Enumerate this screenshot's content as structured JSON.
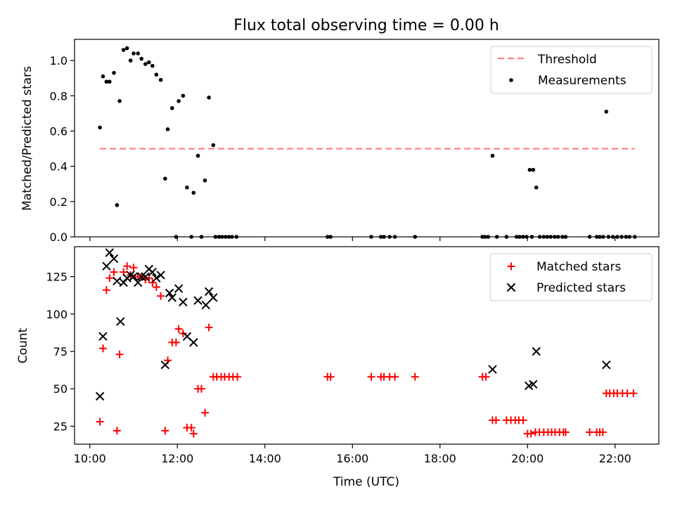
{
  "chart_data": {
    "title": "Flux total observing time = 0.00 h",
    "xlabel": "Time (UTC)",
    "x_ticks": [
      "10:00",
      "12:00",
      "14:00",
      "16:00",
      "18:00",
      "20:00",
      "22:00"
    ],
    "x_tick_hours": [
      10,
      12,
      14,
      16,
      18,
      20,
      22
    ],
    "xlim_hours": [
      9.65,
      23.0
    ],
    "panels": [
      {
        "type": "scatter",
        "ylabel": "Matched/Predicted stars",
        "ylim": [
          0,
          1.12
        ],
        "y_ticks": [
          0.0,
          0.2,
          0.4,
          0.6,
          0.8,
          1.0
        ],
        "y_tick_labels": [
          "0.0",
          "0.2",
          "0.4",
          "0.6",
          "0.8",
          "1.0"
        ],
        "legend_position": "top-right",
        "threshold": {
          "name": "Threshold",
          "color": "#ff7f7f",
          "y": 0.5,
          "x_range": [
            10.23,
            22.45
          ]
        },
        "series": [
          {
            "name": "Measurements",
            "color": "#000000",
            "marker": "dot",
            "points": [
              [
                10.23,
                0.62
              ],
              [
                10.3,
                0.91
              ],
              [
                10.38,
                0.88
              ],
              [
                10.45,
                0.88
              ],
              [
                10.55,
                0.93
              ],
              [
                10.62,
                0.18
              ],
              [
                10.68,
                0.77
              ],
              [
                10.77,
                1.06
              ],
              [
                10.85,
                1.07
              ],
              [
                10.93,
                1.0
              ],
              [
                11.0,
                1.04
              ],
              [
                11.1,
                1.04
              ],
              [
                11.18,
                1.01
              ],
              [
                11.27,
                0.98
              ],
              [
                11.35,
                0.99
              ],
              [
                11.43,
                0.97
              ],
              [
                11.52,
                0.92
              ],
              [
                11.62,
                0.89
              ],
              [
                11.72,
                0.33
              ],
              [
                11.78,
                0.61
              ],
              [
                11.88,
                0.73
              ],
              [
                11.97,
                0.0
              ],
              [
                12.03,
                0.77
              ],
              [
                12.13,
                0.8
              ],
              [
                12.22,
                0.28
              ],
              [
                12.32,
                0.0
              ],
              [
                12.37,
                0.25
              ],
              [
                12.47,
                0.46
              ],
              [
                12.55,
                0.0
              ],
              [
                12.63,
                0.32
              ],
              [
                12.72,
                0.79
              ],
              [
                12.82,
                0.52
              ],
              [
                12.87,
                0.0
              ],
              [
                12.95,
                0.0
              ],
              [
                13.02,
                0.0
              ],
              [
                13.1,
                0.0
              ],
              [
                13.18,
                0.0
              ],
              [
                13.25,
                0.0
              ],
              [
                13.35,
                0.0
              ],
              [
                15.43,
                0.0
              ],
              [
                15.5,
                0.0
              ],
              [
                16.43,
                0.0
              ],
              [
                16.65,
                0.0
              ],
              [
                16.72,
                0.0
              ],
              [
                16.85,
                0.0
              ],
              [
                16.97,
                0.0
              ],
              [
                17.43,
                0.0
              ],
              [
                18.97,
                0.0
              ],
              [
                19.03,
                0.0
              ],
              [
                19.1,
                0.0
              ],
              [
                19.2,
                0.46
              ],
              [
                19.3,
                0.0
              ],
              [
                19.52,
                0.0
              ],
              [
                19.75,
                0.0
              ],
              [
                19.82,
                0.0
              ],
              [
                19.9,
                0.0
              ],
              [
                19.98,
                0.0
              ],
              [
                20.05,
                0.38
              ],
              [
                20.1,
                0.0
              ],
              [
                20.13,
                0.38
              ],
              [
                20.2,
                0.28
              ],
              [
                20.28,
                0.0
              ],
              [
                20.37,
                0.0
              ],
              [
                20.45,
                0.0
              ],
              [
                20.53,
                0.0
              ],
              [
                20.62,
                0.0
              ],
              [
                20.7,
                0.0
              ],
              [
                20.8,
                0.0
              ],
              [
                20.87,
                0.0
              ],
              [
                21.42,
                0.0
              ],
              [
                21.58,
                0.0
              ],
              [
                21.65,
                0.0
              ],
              [
                21.73,
                0.0
              ],
              [
                21.8,
                0.71
              ],
              [
                21.85,
                0.0
              ],
              [
                21.95,
                0.0
              ],
              [
                22.05,
                0.0
              ],
              [
                22.15,
                0.0
              ],
              [
                22.25,
                0.0
              ],
              [
                22.33,
                0.0
              ],
              [
                22.45,
                0.0
              ]
            ]
          }
        ]
      },
      {
        "type": "scatter",
        "ylabel": "Count",
        "ylim": [
          13,
          145
        ],
        "y_ticks": [
          25,
          50,
          75,
          100,
          125
        ],
        "y_tick_labels": [
          "25",
          "50",
          "75",
          "100",
          "125"
        ],
        "legend_position": "top-right",
        "series": [
          {
            "name": "Matched stars",
            "color": "#ff0000",
            "marker": "plus",
            "points": [
              [
                10.23,
                28
              ],
              [
                10.3,
                77
              ],
              [
                10.38,
                116
              ],
              [
                10.45,
                124
              ],
              [
                10.55,
                128
              ],
              [
                10.62,
                22
              ],
              [
                10.68,
                73
              ],
              [
                10.77,
                128
              ],
              [
                10.85,
                132
              ],
              [
                10.93,
                126
              ],
              [
                11.0,
                131
              ],
              [
                11.1,
                125
              ],
              [
                11.18,
                125
              ],
              [
                11.27,
                123
              ],
              [
                11.35,
                124
              ],
              [
                11.43,
                121
              ],
              [
                11.52,
                118
              ],
              [
                11.62,
                112
              ],
              [
                11.72,
                22
              ],
              [
                11.78,
                69
              ],
              [
                11.88,
                81
              ],
              [
                11.97,
                81
              ],
              [
                12.03,
                90
              ],
              [
                12.13,
                87
              ],
              [
                12.22,
                24
              ],
              [
                12.32,
                24
              ],
              [
                12.37,
                20
              ],
              [
                12.47,
                50
              ],
              [
                12.55,
                50
              ],
              [
                12.63,
                34
              ],
              [
                12.72,
                91
              ],
              [
                12.82,
                58
              ],
              [
                12.9,
                58
              ],
              [
                13.0,
                58
              ],
              [
                13.08,
                58
              ],
              [
                13.18,
                58
              ],
              [
                13.27,
                58
              ],
              [
                13.37,
                58
              ],
              [
                15.43,
                58
              ],
              [
                15.5,
                58
              ],
              [
                16.43,
                58
              ],
              [
                16.65,
                58
              ],
              [
                16.72,
                58
              ],
              [
                16.85,
                58
              ],
              [
                16.97,
                58
              ],
              [
                17.43,
                58
              ],
              [
                18.97,
                58
              ],
              [
                19.05,
                58
              ],
              [
                19.2,
                29
              ],
              [
                19.28,
                29
              ],
              [
                19.52,
                29
              ],
              [
                19.62,
                29
              ],
              [
                19.72,
                29
              ],
              [
                19.8,
                29
              ],
              [
                19.9,
                29
              ],
              [
                20.0,
                20
              ],
              [
                20.08,
                20
              ],
              [
                20.18,
                21
              ],
              [
                20.27,
                21
              ],
              [
                20.37,
                21
              ],
              [
                20.47,
                21
              ],
              [
                20.55,
                21
              ],
              [
                20.63,
                21
              ],
              [
                20.73,
                21
              ],
              [
                20.82,
                21
              ],
              [
                20.87,
                21
              ],
              [
                21.42,
                21
              ],
              [
                21.58,
                21
              ],
              [
                21.65,
                21
              ],
              [
                21.72,
                21
              ],
              [
                21.8,
                47
              ],
              [
                21.88,
                47
              ],
              [
                21.97,
                47
              ],
              [
                22.05,
                47
              ],
              [
                22.17,
                47
              ],
              [
                22.28,
                47
              ],
              [
                22.42,
                47
              ]
            ]
          },
          {
            "name": "Predicted stars",
            "color": "#000000",
            "marker": "x",
            "points": [
              [
                10.23,
                45
              ],
              [
                10.3,
                85
              ],
              [
                10.38,
                132
              ],
              [
                10.45,
                141
              ],
              [
                10.55,
                137
              ],
              [
                10.62,
                122
              ],
              [
                10.7,
                95
              ],
              [
                10.77,
                121
              ],
              [
                10.85,
                124
              ],
              [
                10.93,
                126
              ],
              [
                11.0,
                125
              ],
              [
                11.1,
                121
              ],
              [
                11.18,
                125
              ],
              [
                11.27,
                125
              ],
              [
                11.35,
                130
              ],
              [
                11.43,
                128
              ],
              [
                11.52,
                124
              ],
              [
                11.62,
                126
              ],
              [
                11.72,
                66
              ],
              [
                11.82,
                114
              ],
              [
                11.88,
                111
              ],
              [
                12.03,
                117
              ],
              [
                12.13,
                108
              ],
              [
                12.22,
                85
              ],
              [
                12.37,
                81
              ],
              [
                12.47,
                109
              ],
              [
                12.65,
                106
              ],
              [
                12.72,
                115
              ],
              [
                12.82,
                111
              ],
              [
                19.2,
                63
              ],
              [
                20.03,
                52
              ],
              [
                20.13,
                53
              ],
              [
                20.2,
                75
              ],
              [
                21.8,
                66
              ]
            ]
          }
        ]
      }
    ]
  }
}
